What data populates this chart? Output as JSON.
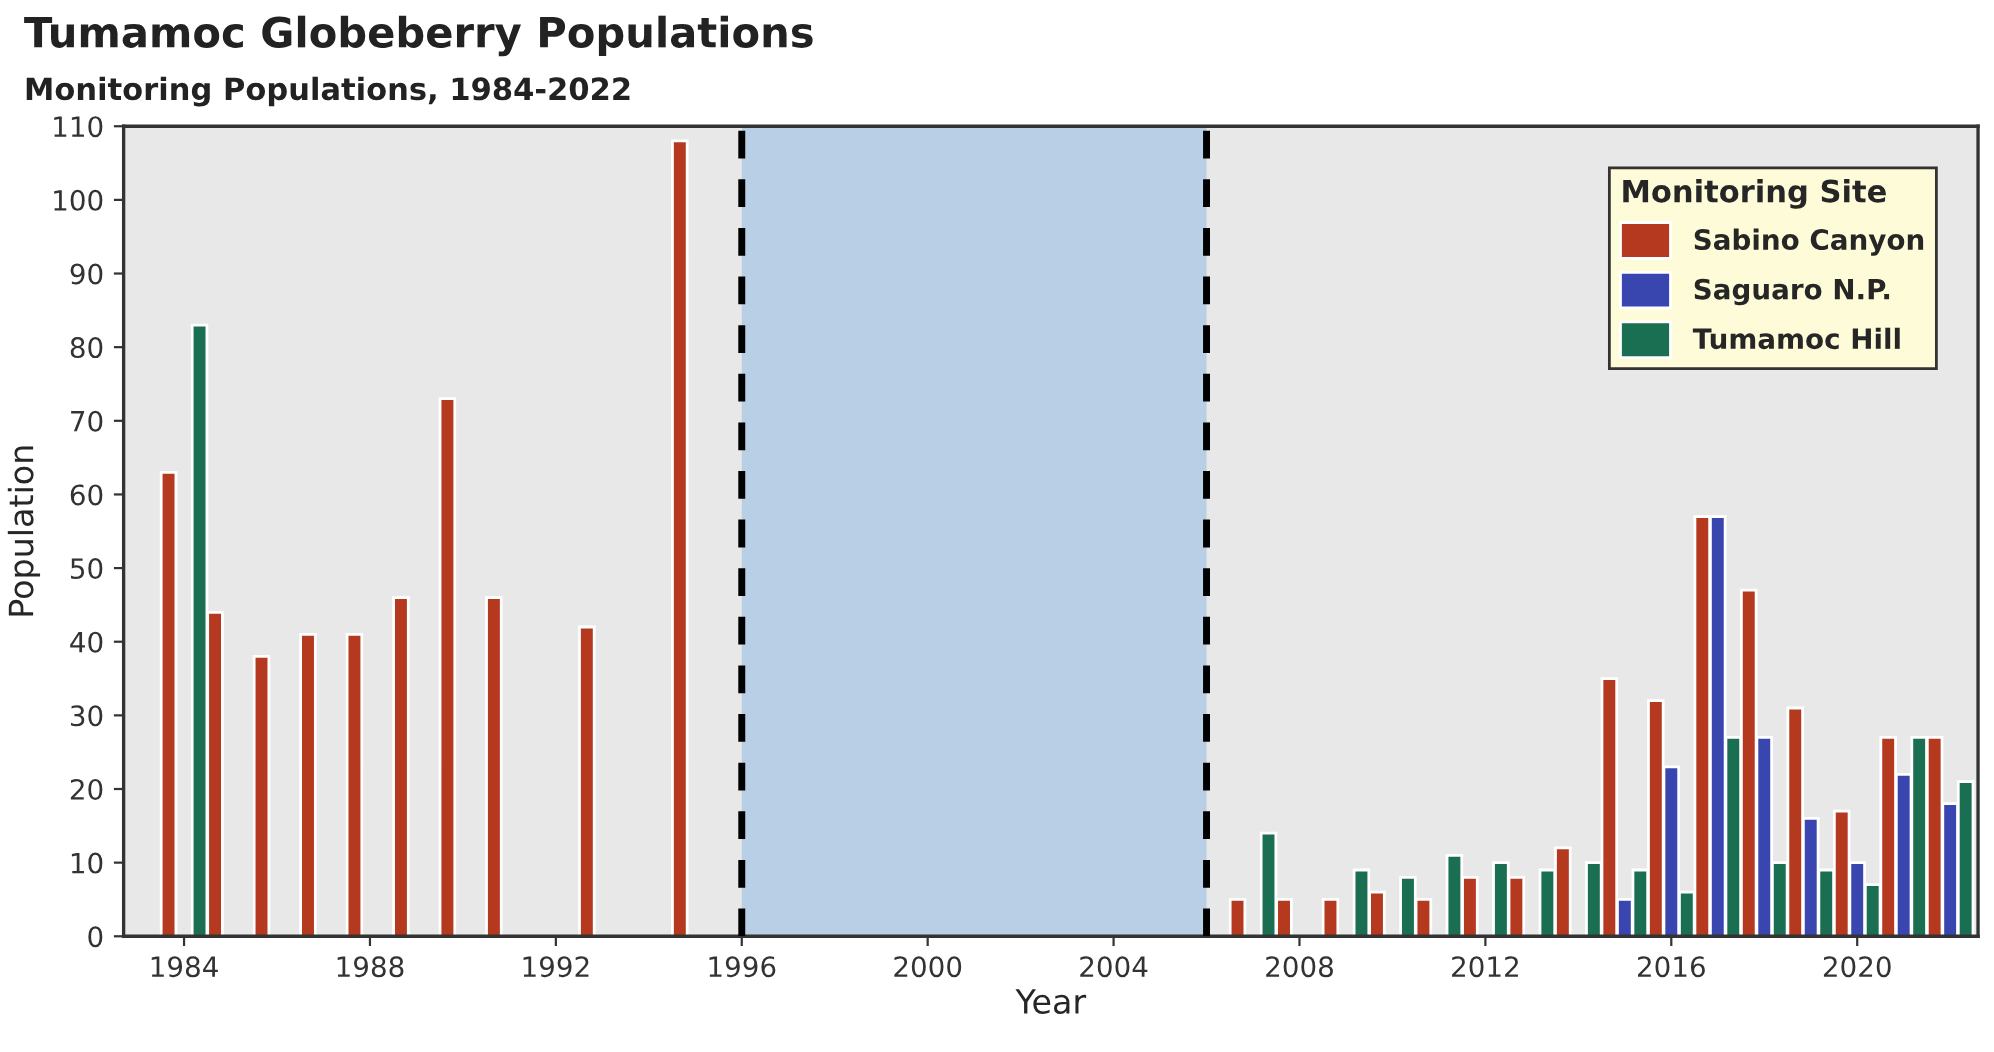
{
  "chart_data": {
    "type": "bar",
    "title": "Tumamoc Globeberry Populations",
    "subtitle": "Monitoring Populations, 1984-2022",
    "xlabel": "Year",
    "ylabel": "Population",
    "legend_title": "Monitoring Site",
    "series": [
      {
        "name": "Sabino Canyon",
        "color": "#b5391f",
        "x": [
          1984,
          1985,
          1986,
          1987,
          1988,
          1989,
          1990,
          1991,
          1993,
          1995,
          2007,
          2008,
          2009,
          2010,
          2011,
          2012,
          2013,
          2014,
          2015,
          2016,
          2017,
          2018,
          2019,
          2020,
          2021,
          2022
        ],
        "values": [
          63,
          44,
          38,
          41,
          41,
          46,
          73,
          46,
          42,
          108,
          5,
          5,
          5,
          6,
          5,
          8,
          8,
          12,
          35,
          32,
          57,
          47,
          31,
          17,
          27,
          27
        ]
      },
      {
        "name": "Saguaro N.P.",
        "color": "#3a46b0",
        "x": [
          2015,
          2016,
          2017,
          2018,
          2019,
          2020,
          2021,
          2022
        ],
        "values": [
          5,
          23,
          57,
          27,
          16,
          10,
          22,
          18
        ]
      },
      {
        "name": "Tumamoc Hill",
        "color": "#1a6f52",
        "x": [
          1984,
          2007,
          2009,
          2010,
          2011,
          2012,
          2013,
          2014,
          2015,
          2016,
          2017,
          2018,
          2019,
          2020,
          2021,
          2022
        ],
        "values": [
          83,
          14,
          9,
          8,
          11,
          10,
          9,
          10,
          9,
          6,
          27,
          10,
          9,
          7,
          27,
          21
        ]
      }
    ],
    "xlim": [
      1982.7,
      2022.6
    ],
    "xticks": [
      1984,
      1988,
      1992,
      1996,
      2000,
      2004,
      2008,
      2012,
      2016,
      2020
    ],
    "ylim": [
      0,
      110
    ],
    "yticks": [
      0,
      10,
      20,
      30,
      40,
      50,
      60,
      70,
      80,
      90,
      100,
      110
    ],
    "bands": [
      {
        "axis": "x",
        "from": 1996,
        "to": 2006,
        "color": "#b8cfe6"
      }
    ],
    "ref_lines": [
      {
        "axis": "x",
        "value": 1996,
        "color": "#000000",
        "line_style": "dashed"
      },
      {
        "axis": "x",
        "value": 2006,
        "color": "#000000",
        "line_style": "dashed"
      }
    ],
    "grid": false,
    "legend": "top right"
  }
}
